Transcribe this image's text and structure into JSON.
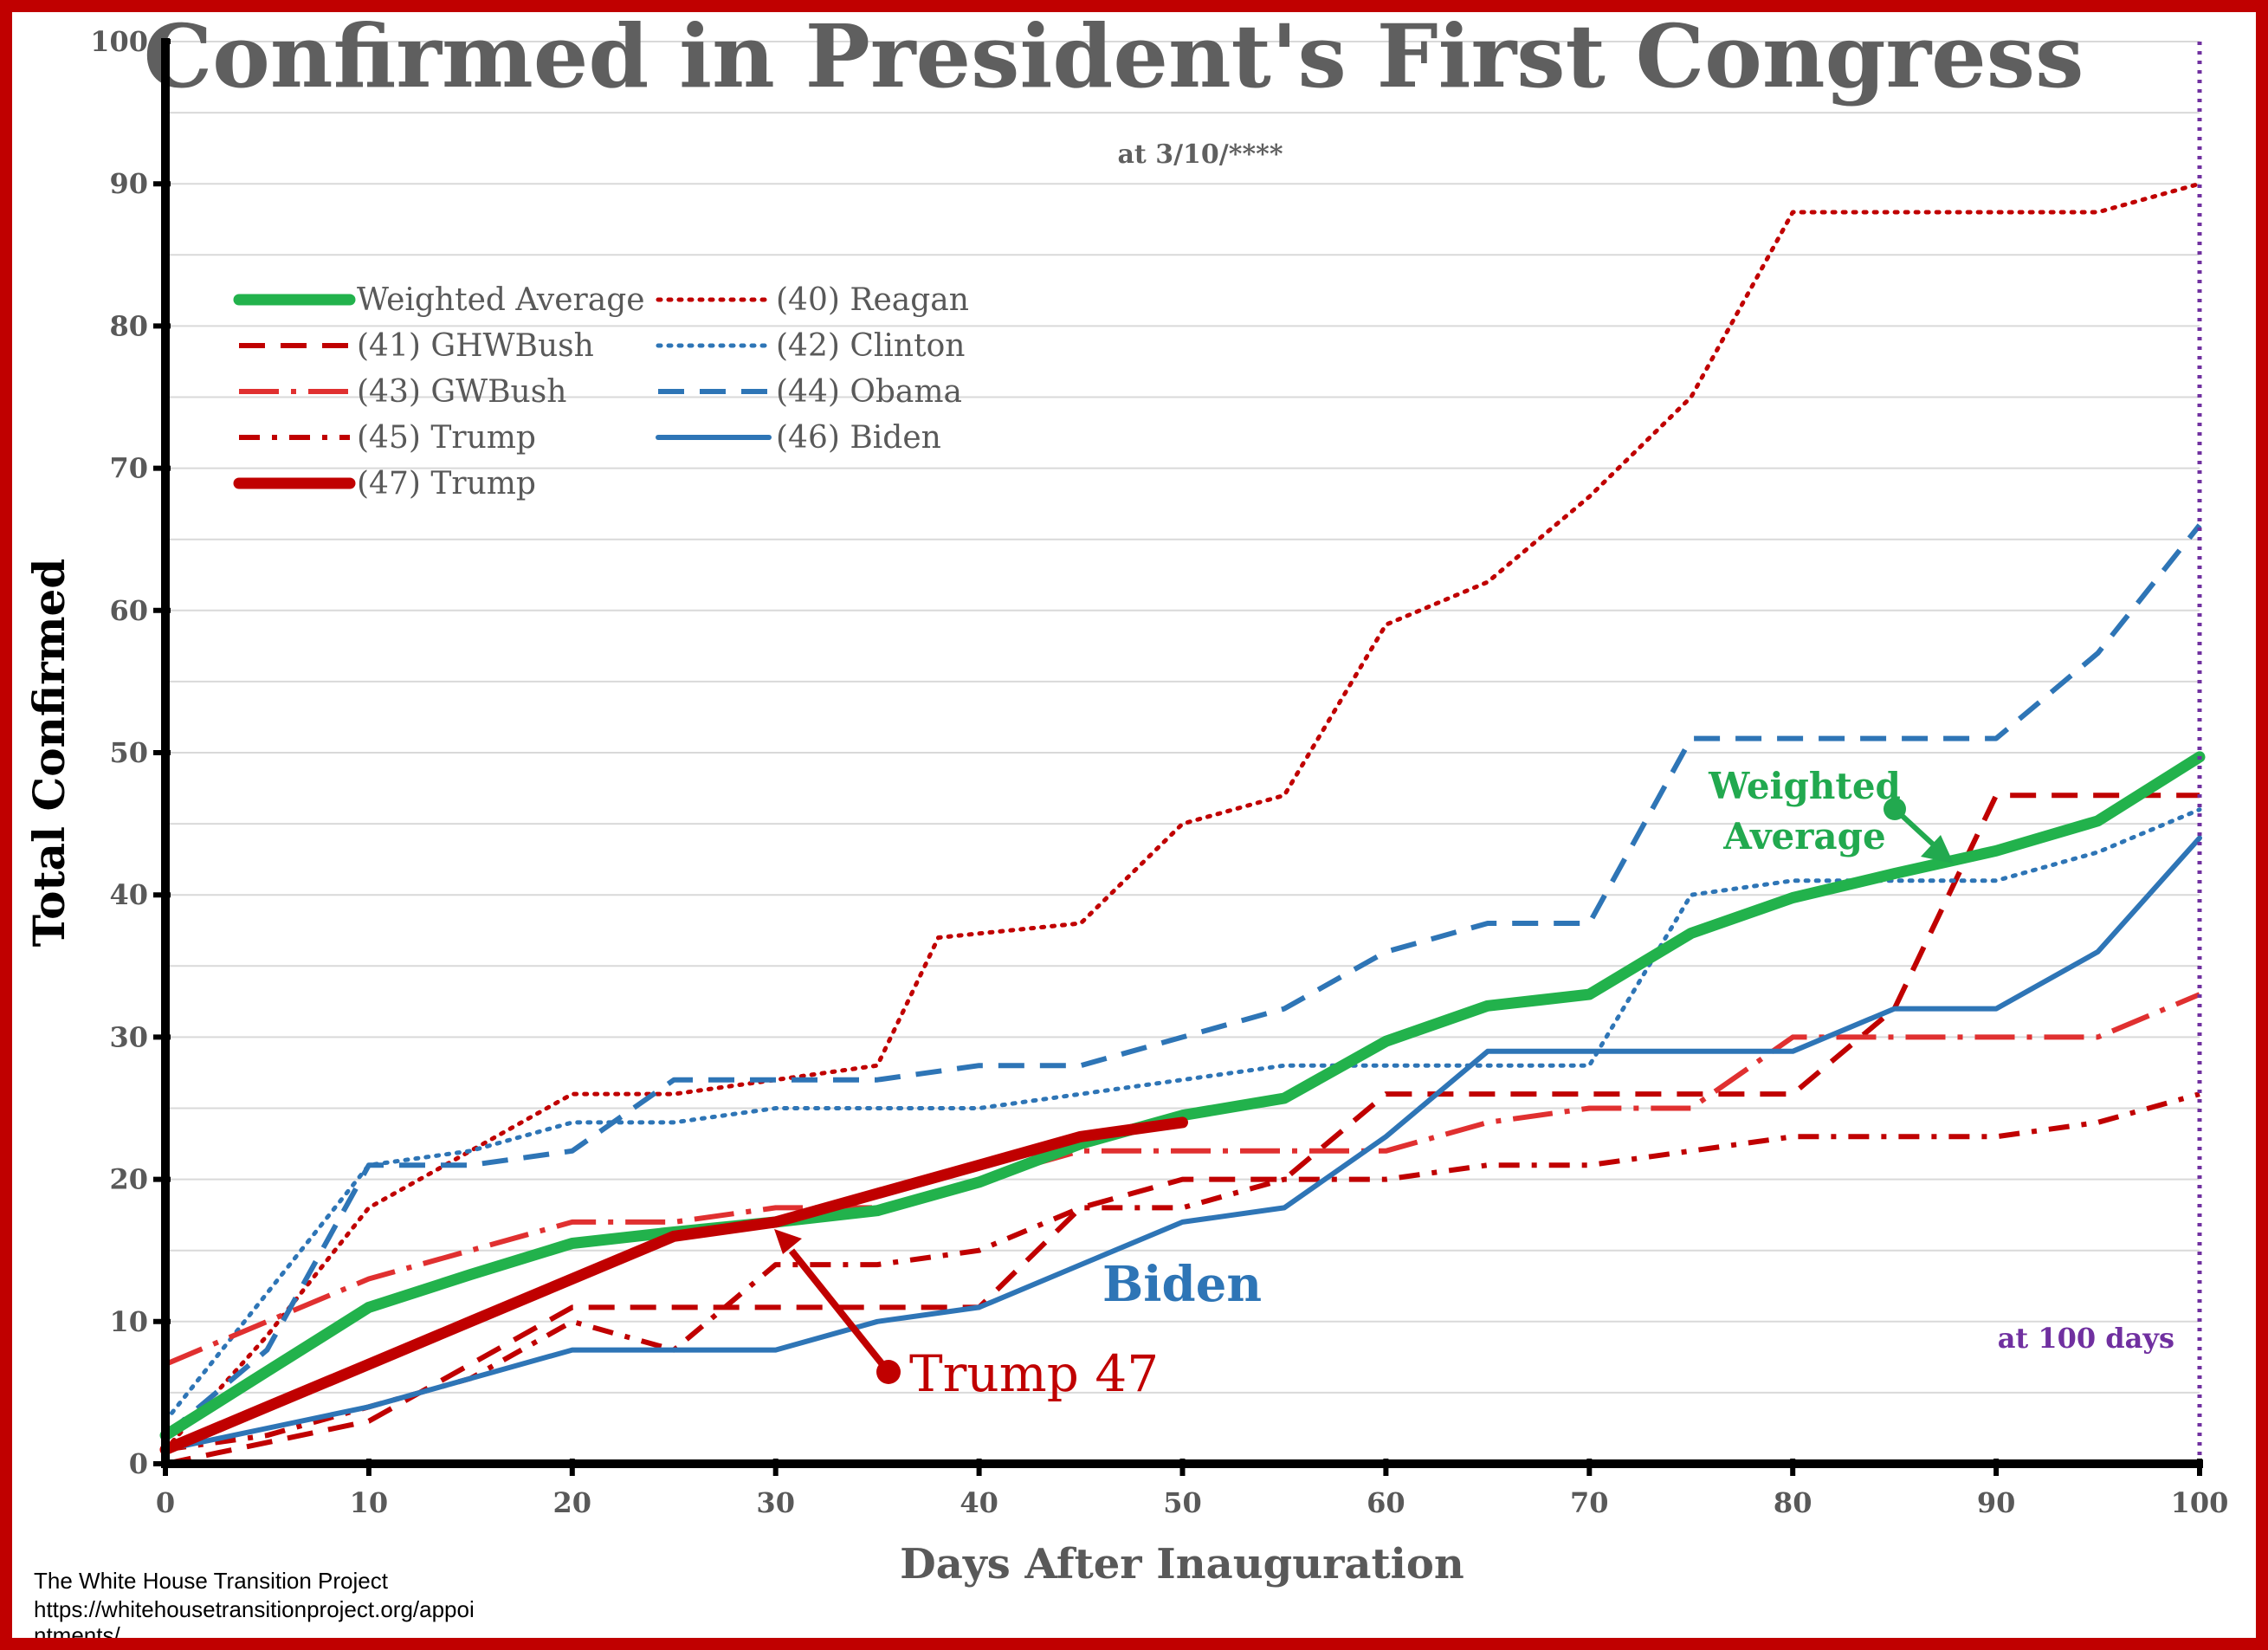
{
  "chart_data": {
    "type": "line",
    "title": "Confirmed in President's First Congress",
    "subtitle": "at 3/10/****",
    "xlabel": "Days After Inauguration",
    "ylabel": "Total Confirmed",
    "xlim": [
      0,
      100
    ],
    "ylim": [
      0,
      100
    ],
    "xticks": [
      0,
      10,
      20,
      30,
      40,
      50,
      60,
      70,
      80,
      90,
      100
    ],
    "yticks": [
      0,
      10,
      20,
      30,
      40,
      50,
      60,
      70,
      80,
      90,
      100
    ],
    "grid": true,
    "legend_position": "top-left",
    "series": [
      {
        "name": "Weighted Average",
        "color": "#22b24c",
        "style": "solid-thick",
        "x": [
          0,
          5,
          10,
          15,
          20,
          25,
          30,
          35,
          40,
          45,
          50,
          55,
          60,
          65,
          70,
          75,
          80,
          85,
          90,
          95,
          100
        ],
        "y": [
          2,
          6.5,
          11,
          13.3,
          15.5,
          16.3,
          17,
          17.8,
          19.8,
          22.5,
          24.5,
          25.7,
          29.7,
          32.2,
          33,
          37.3,
          39.8,
          41.5,
          43.1,
          45.2,
          49.7
        ]
      },
      {
        "name": "(40) Reagan",
        "color": "#c00000",
        "style": "dotted",
        "x": [
          0,
          5,
          10,
          15,
          20,
          25,
          30,
          35,
          38,
          45,
          50,
          55,
          60,
          65,
          70,
          75,
          80,
          85,
          90,
          95,
          100
        ],
        "y": [
          1,
          9,
          18,
          22,
          26,
          26,
          27,
          28,
          37,
          38,
          45,
          47,
          59,
          62,
          68,
          75,
          88,
          88,
          88,
          88,
          90
        ]
      },
      {
        "name": "(41) GHWBush",
        "color": "#c00000",
        "style": "dashed",
        "x": [
          0,
          5,
          10,
          15,
          20,
          25,
          30,
          35,
          40,
          45,
          50,
          55,
          60,
          65,
          70,
          75,
          80,
          85,
          90,
          95,
          100
        ],
        "y": [
          0,
          1.5,
          3,
          7,
          11,
          11,
          11,
          11,
          11,
          18,
          20,
          20,
          26,
          26,
          26,
          26,
          26,
          32,
          47,
          47,
          47
        ]
      },
      {
        "name": "(42) Clinton",
        "color": "#2e75b6",
        "style": "dotted",
        "x": [
          0,
          5,
          10,
          15,
          20,
          25,
          30,
          35,
          40,
          45,
          50,
          55,
          60,
          65,
          70,
          75,
          80,
          85,
          90,
          95,
          100
        ],
        "y": [
          3,
          12,
          21,
          22,
          24,
          24,
          25,
          25,
          25,
          26,
          27,
          28,
          28,
          28,
          28,
          40,
          41,
          41,
          41,
          43,
          46
        ]
      },
      {
        "name": "(43) GWBush",
        "color": "#e03030",
        "style": "long-dash-dot",
        "x": [
          0,
          5,
          10,
          15,
          20,
          25,
          30,
          35,
          40,
          45,
          50,
          55,
          60,
          65,
          70,
          75,
          80,
          85,
          90,
          95,
          100
        ],
        "y": [
          7,
          10,
          13,
          15,
          17,
          17,
          18,
          18,
          20,
          22,
          22,
          22,
          22,
          24,
          25,
          25,
          30,
          30,
          30,
          30,
          33
        ]
      },
      {
        "name": "(44) Obama",
        "color": "#2e75b6",
        "style": "dashed",
        "x": [
          0,
          5,
          10,
          15,
          20,
          25,
          30,
          35,
          40,
          45,
          50,
          55,
          60,
          65,
          70,
          75,
          80,
          85,
          90,
          95,
          100
        ],
        "y": [
          2,
          8,
          21,
          21,
          22,
          27,
          27,
          27,
          28,
          28,
          30,
          32,
          36,
          38,
          38,
          51,
          51,
          51,
          51,
          57,
          66
        ]
      },
      {
        "name": "(45) Trump",
        "color": "#c00000",
        "style": "dash-dot",
        "x": [
          0,
          5,
          10,
          15,
          20,
          25,
          30,
          35,
          40,
          45,
          50,
          55,
          60,
          65,
          70,
          75,
          80,
          85,
          90,
          95,
          100
        ],
        "y": [
          1,
          2,
          4,
          6,
          10,
          8,
          14,
          14,
          15,
          18,
          18,
          20,
          20,
          21,
          21,
          22,
          23,
          23,
          23,
          24,
          26
        ]
      },
      {
        "name": "(46) Biden",
        "color": "#2e75b6",
        "style": "solid",
        "x": [
          0,
          5,
          10,
          15,
          20,
          25,
          30,
          35,
          40,
          45,
          50,
          55,
          60,
          65,
          70,
          75,
          80,
          85,
          90,
          95,
          100
        ],
        "y": [
          1,
          2.5,
          4,
          6,
          8,
          8,
          8,
          10,
          11,
          14,
          17,
          18,
          23,
          29,
          29,
          29,
          29,
          32,
          32,
          36,
          44
        ]
      },
      {
        "name": "(47) Trump",
        "color": "#c00000",
        "style": "solid-thick",
        "x": [
          0,
          5,
          10,
          15,
          20,
          25,
          30,
          35,
          40,
          45,
          50
        ],
        "y": [
          1,
          4,
          7,
          10,
          13,
          16,
          17,
          19,
          21,
          23,
          24
        ]
      }
    ],
    "annotations": {
      "weighted_average_line1": "Weighted",
      "weighted_average_line2": "Average",
      "biden": "Biden",
      "trump47": "Trump 47",
      "hundred_days": "at 100 days"
    }
  },
  "source_line1": "The White House Transition Project",
  "source_line2": "https://whitehousetransitionproject.org/appoi",
  "source_line3": "ntments/"
}
